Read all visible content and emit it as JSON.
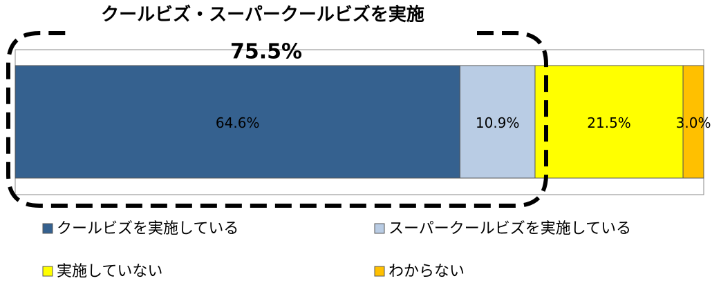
{
  "chart_data": {
    "type": "stacked-bar",
    "orientation": "horizontal",
    "title": "クールビズ・スーパークールビズを実施",
    "annotation": "75.5%",
    "categories": [
      null
    ],
    "xlim": [
      0,
      100
    ],
    "series": [
      {
        "name": "クールビズを実施している",
        "color": "#35618f",
        "values": [
          64.6
        ],
        "value_labels": [
          "64.6%"
        ]
      },
      {
        "name": "スーパークールビズを実施している",
        "color": "#b9cce4",
        "values": [
          10.9
        ],
        "value_labels": [
          "10.9%"
        ]
      },
      {
        "name": "実施していない",
        "color": "#ffff00",
        "values": [
          21.5
        ],
        "value_labels": [
          "21.5%"
        ]
      },
      {
        "name": "わからない",
        "color": "#ffc000",
        "values": [
          3.0
        ],
        "value_labels": [
          "3.0%"
        ]
      }
    ]
  }
}
